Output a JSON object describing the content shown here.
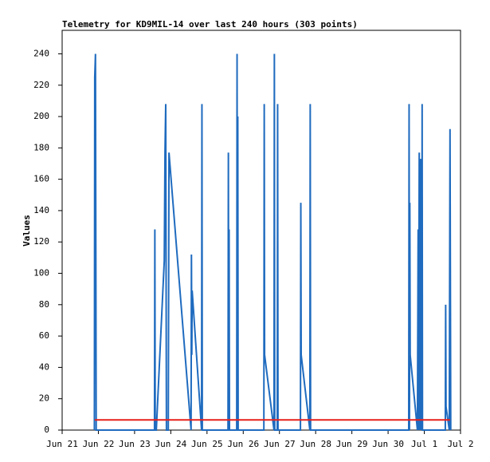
{
  "chart_data": {
    "type": "line",
    "title": "Telemetry for KD9MIL-14 over last 240 hours (303 points)",
    "y_label": "Values",
    "xlim": [
      0,
      11
    ],
    "xticks": [
      {
        "value": 0,
        "label": "Jun 21"
      },
      {
        "value": 1,
        "label": "Jun 22"
      },
      {
        "value": 2,
        "label": "Jun 23"
      },
      {
        "value": 3,
        "label": "Jun 24"
      },
      {
        "value": 4,
        "label": "Jun 25"
      },
      {
        "value": 5,
        "label": "Jun 26"
      },
      {
        "value": 6,
        "label": "Jun 27"
      },
      {
        "value": 7,
        "label": "Jun 28"
      },
      {
        "value": 8,
        "label": "Jun 29"
      },
      {
        "value": 9,
        "label": "Jun 30"
      },
      {
        "value": 10,
        "label": "Jul 1"
      },
      {
        "value": 11,
        "label": "Jul 2"
      }
    ],
    "ylim": [
      0,
      255
    ],
    "yticks": [
      0,
      20,
      40,
      60,
      80,
      100,
      120,
      140,
      160,
      180,
      200,
      220,
      240
    ],
    "series": [
      {
        "color": "#1f6bbf",
        "x": [
          0.89,
          0.9,
          0.92,
          0.94,
          2.55,
          2.56,
          2.57,
          2.6,
          2.82,
          2.84,
          2.86,
          2.88,
          2.93,
          2.95,
          3.56,
          3.57,
          3.58,
          3.59,
          3.85,
          3.86,
          3.87,
          4.58,
          4.59,
          4.6,
          4.61,
          4.62,
          4.82,
          4.83,
          4.84,
          4.85,
          4.86,
          5.57,
          5.58,
          5.59,
          5.85,
          5.86,
          5.87,
          5.94,
          5.95,
          5.96,
          6.58,
          6.59,
          6.6,
          6.84,
          6.85,
          6.86,
          9.57,
          9.58,
          9.59,
          9.6,
          9.61,
          9.81,
          9.83,
          9.84,
          9.86,
          9.87,
          9.9,
          9.91,
          9.92,
          9.93,
          9.94,
          9.95,
          10.58,
          10.59,
          10.6,
          10.69,
          10.71,
          10.73
        ],
        "values": [
          0,
          225,
          240,
          0,
          0,
          128,
          0,
          0,
          108,
          177,
          208,
          0,
          0,
          177,
          0,
          112,
          48,
          89,
          0,
          208,
          0,
          0,
          177,
          0,
          128,
          0,
          0,
          240,
          0,
          200,
          0,
          0,
          208,
          48,
          0,
          240,
          0,
          0,
          208,
          0,
          0,
          145,
          48,
          0,
          208,
          0,
          0,
          208,
          0,
          145,
          48,
          0,
          128,
          0,
          177,
          0,
          173,
          0,
          135,
          0,
          208,
          0,
          0,
          80,
          15,
          0,
          192,
          0
        ]
      },
      {
        "color": "#e8201a",
        "x": [
          0.9,
          10.71
        ],
        "values": [
          6.5,
          6.5
        ]
      }
    ]
  }
}
